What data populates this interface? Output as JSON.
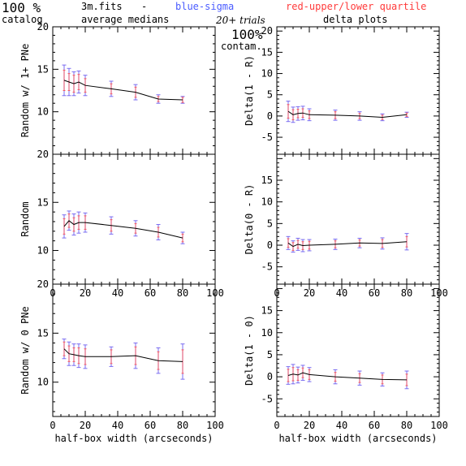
{
  "header": {
    "percent_catalog": "100 %",
    "catalog_label": "catalog",
    "file_name": "3m.fits",
    "dash": "-",
    "average_medians": "average medians",
    "blue_sigma": "blue-sigma",
    "red_quartile": "red-upper/lower quartile",
    "trials": "20+ trials",
    "delta_plots": "delta plots",
    "contam_percent": "100%",
    "contam_label": "contam."
  },
  "colors": {
    "line": "#000000",
    "sigma": "#7a6cf0",
    "quartile": "#ff3b3b",
    "frame": "#000000"
  },
  "chart_data": [
    {
      "type": "line",
      "xlabel": "",
      "ylabel": "Random w/ 1+ PNe",
      "xlim": [
        0,
        100
      ],
      "ylim": [
        5,
        20
      ],
      "yticks": [
        10,
        15,
        20
      ],
      "xticks": [],
      "x": [
        7,
        10,
        13,
        16,
        20,
        36,
        51,
        65,
        80
      ],
      "y": [
        13.7,
        13.5,
        13.3,
        13.5,
        13.1,
        12.7,
        12.3,
        11.5,
        11.4
      ],
      "sigma_err": [
        1.8,
        1.6,
        1.4,
        1.3,
        1.2,
        0.9,
        0.9,
        0.5,
        0.4
      ],
      "quartile_err": [
        1.2,
        1.0,
        1.0,
        0.9,
        0.8,
        0.6,
        0.6,
        0.3,
        0.3
      ]
    },
    {
      "type": "line",
      "xlabel": "",
      "ylabel": "Delta(1 - R)",
      "xlim": [
        0,
        100
      ],
      "ylim": [
        -9,
        21
      ],
      "yticks": [
        -5,
        0,
        5,
        10,
        15,
        20
      ],
      "xticks": [],
      "x": [
        7,
        10,
        13,
        16,
        20,
        36,
        51,
        65,
        80
      ],
      "y": [
        1.1,
        0.3,
        0.6,
        0.7,
        0.3,
        0.2,
        0.0,
        -0.3,
        0.3
      ],
      "sigma_err": [
        2.4,
        1.8,
        1.6,
        1.6,
        1.4,
        1.2,
        1.0,
        0.8,
        0.6
      ],
      "quartile_err": [
        1.6,
        1.2,
        1.0,
        1.0,
        0.9,
        0.8,
        0.6,
        0.5,
        0.4
      ]
    },
    {
      "type": "line",
      "xlabel": "",
      "ylabel": "Random",
      "xlim": [
        0,
        100
      ],
      "ylim": [
        6.5,
        20
      ],
      "yticks": [
        10,
        15,
        20
      ],
      "xticks": [
        0,
        20,
        40,
        60,
        80,
        100
      ],
      "x": [
        7,
        10,
        13,
        16,
        20,
        36,
        51,
        65,
        80
      ],
      "y": [
        12.5,
        13.1,
        12.7,
        12.9,
        12.9,
        12.6,
        12.3,
        11.9,
        11.3
      ],
      "sigma_err": [
        1.2,
        1.0,
        1.1,
        1.1,
        1.0,
        0.9,
        0.8,
        0.8,
        0.6
      ],
      "quartile_err": [
        0.8,
        0.7,
        0.7,
        0.7,
        0.7,
        0.6,
        0.5,
        0.5,
        0.4
      ]
    },
    {
      "type": "line",
      "xlabel": "",
      "ylabel": "Delta(0 - R)",
      "xlim": [
        0,
        100
      ],
      "ylim": [
        -9,
        21
      ],
      "yticks": [
        -5,
        0,
        5,
        10,
        15
      ],
      "xticks": [
        0,
        20,
        40,
        60,
        80,
        100
      ],
      "x": [
        7,
        10,
        13,
        16,
        20,
        36,
        51,
        65,
        80
      ],
      "y": [
        0.5,
        -0.3,
        0.2,
        -0.1,
        0.0,
        0.2,
        0.5,
        0.4,
        0.8
      ],
      "sigma_err": [
        1.5,
        1.3,
        1.4,
        1.4,
        1.3,
        1.2,
        1.1,
        1.3,
        1.9
      ],
      "quartile_err": [
        1.0,
        0.9,
        0.9,
        0.9,
        0.9,
        0.8,
        0.7,
        0.9,
        1.2
      ]
    },
    {
      "type": "line",
      "xlabel": "half-box width (arcseconds)",
      "ylabel": "Random w/ 0 PNe",
      "xlim": [
        0,
        100
      ],
      "ylim": [
        6.5,
        20
      ],
      "yticks": [
        10,
        15,
        20
      ],
      "xticks": [
        0,
        20,
        40,
        60,
        80,
        100
      ],
      "x": [
        7,
        10,
        13,
        16,
        20,
        36,
        51,
        65,
        80
      ],
      "y": [
        13.4,
        12.9,
        12.8,
        12.7,
        12.6,
        12.6,
        12.7,
        12.2,
        12.1
      ],
      "sigma_err": [
        1.0,
        1.2,
        1.1,
        1.2,
        1.2,
        1.0,
        1.3,
        1.3,
        1.8
      ],
      "quartile_err": [
        0.7,
        0.8,
        0.7,
        0.8,
        0.8,
        0.7,
        0.9,
        0.9,
        1.2
      ]
    },
    {
      "type": "line",
      "xlabel": "half-box width (arcseconds)",
      "ylabel": "Delta(1 - 0)",
      "xlim": [
        0,
        100
      ],
      "ylim": [
        -9,
        21
      ],
      "yticks": [
        -5,
        0,
        5,
        10,
        15
      ],
      "xticks": [
        0,
        20,
        40,
        60,
        80,
        100
      ],
      "x": [
        7,
        10,
        13,
        16,
        20,
        36,
        51,
        65,
        80
      ],
      "y": [
        0.3,
        0.6,
        0.4,
        0.9,
        0.5,
        0.0,
        -0.3,
        -0.6,
        -0.7
      ],
      "sigma_err": [
        2.0,
        2.2,
        1.8,
        1.7,
        1.6,
        1.6,
        1.6,
        1.5,
        2.0
      ],
      "quartile_err": [
        1.4,
        1.5,
        1.2,
        1.1,
        1.1,
        1.0,
        1.0,
        1.0,
        1.3
      ]
    }
  ]
}
